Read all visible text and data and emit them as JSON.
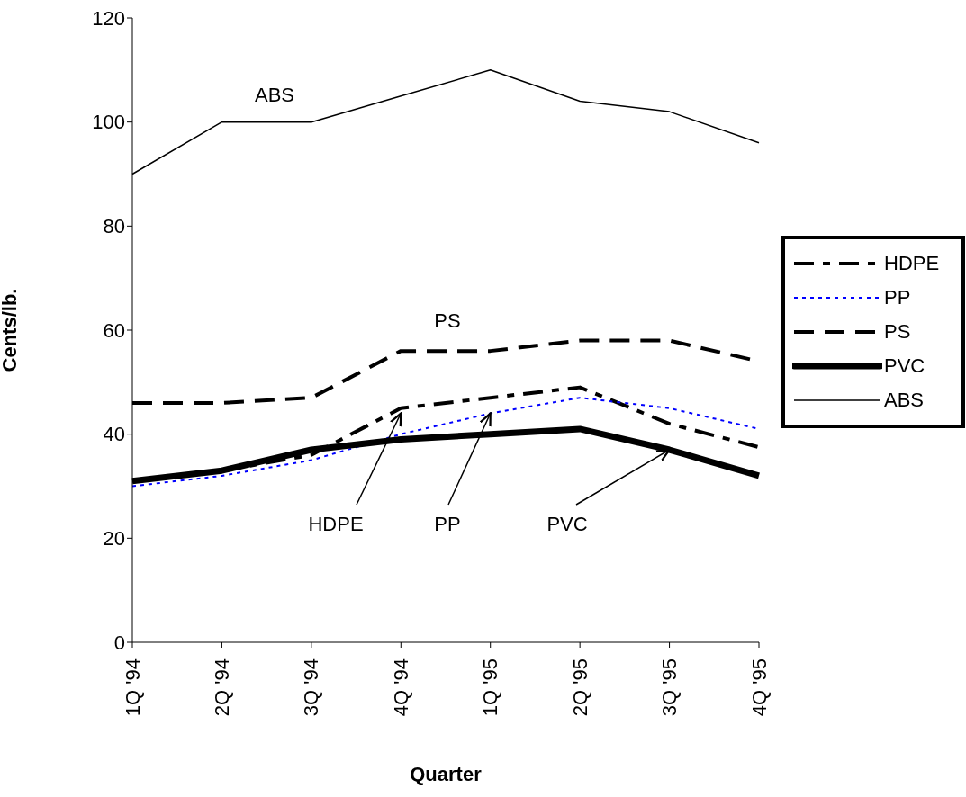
{
  "chart_data": {
    "type": "line",
    "xlabel": "Quarter",
    "ylabel": "Cents/lb.",
    "categories": [
      "1Q '94",
      "2Q '94",
      "3Q '94",
      "4Q '94",
      "1Q '95",
      "2Q '95",
      "3Q '95",
      "4Q '95"
    ],
    "series": [
      {
        "name": "HDPE",
        "color": "#000000",
        "line_style": "dashdot",
        "values": [
          31,
          33,
          36,
          45,
          47,
          49,
          42,
          37.5
        ]
      },
      {
        "name": "PP",
        "color": "#0000ff",
        "line_style": "dotted",
        "values": [
          30,
          32,
          35,
          40,
          44,
          47,
          45,
          41
        ]
      },
      {
        "name": "PS",
        "color": "#000000",
        "line_style": "dashed",
        "values": [
          46,
          46,
          47,
          56,
          56,
          58,
          58,
          54
        ]
      },
      {
        "name": "PVC",
        "color": "#000000",
        "line_style": "solid",
        "values": [
          31,
          33,
          37,
          39,
          40,
          41,
          37,
          32
        ]
      },
      {
        "name": "ABS",
        "color": "#000000",
        "line_style": "solid",
        "values": [
          90,
          100,
          100,
          105,
          110,
          104,
          102,
          96
        ]
      }
    ],
    "annotations": [
      "ABS",
      "PS",
      {
        "text": "HDPE",
        "x": "4Q '94",
        "y": 44
      },
      {
        "text": "PP",
        "x": "1Q '95",
        "y": 44
      },
      {
        "text": "PVC",
        "x": "3Q '95",
        "y": 37
      }
    ],
    "ylim": [
      0,
      120
    ],
    "yticks": [
      0,
      20,
      40,
      60,
      80,
      100,
      120
    ],
    "legend": "right",
    "marker": "none"
  }
}
